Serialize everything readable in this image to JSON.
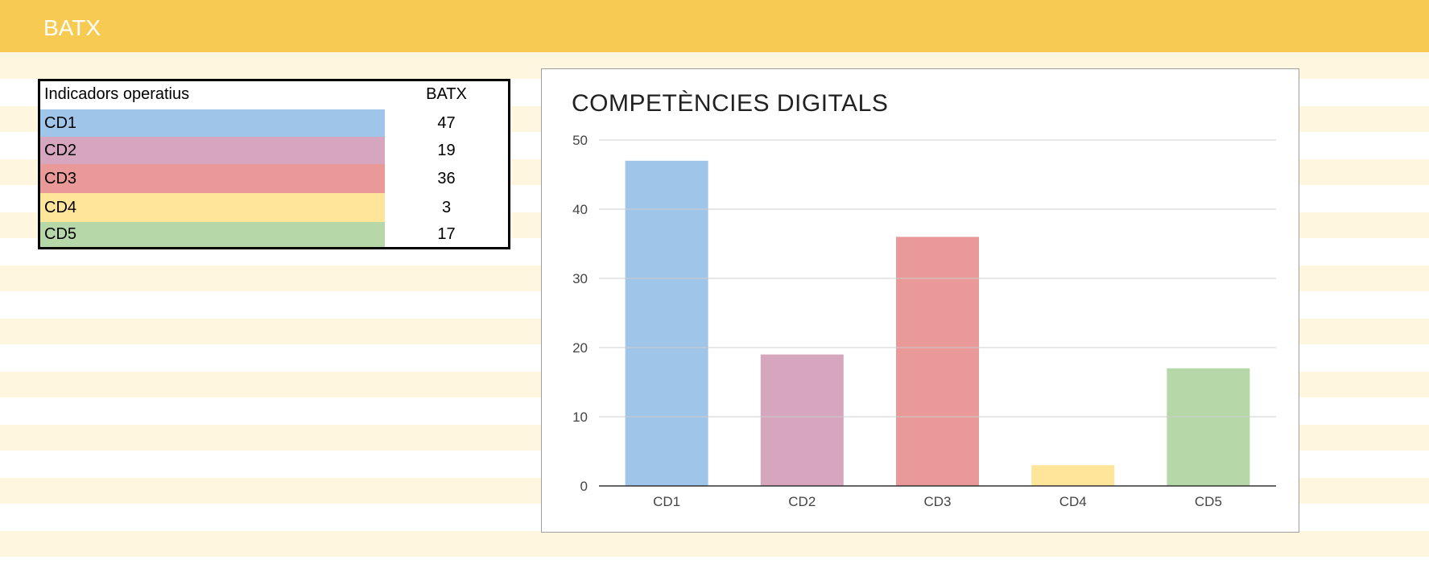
{
  "header": {
    "title": "BATX"
  },
  "table": {
    "header_label": "Indicadors operatius",
    "header_value": "BATX",
    "rows": [
      {
        "label": "CD1",
        "value": "47",
        "color": "#9fc5e8"
      },
      {
        "label": "CD2",
        "value": "19",
        "color": "#d5a6bd"
      },
      {
        "label": "CD3",
        "value": "36",
        "color": "#ea9999"
      },
      {
        "label": "CD4",
        "value": "3",
        "color": "#ffe599"
      },
      {
        "label": "CD5",
        "value": "17",
        "color": "#b6d7a8"
      }
    ]
  },
  "chart_data": {
    "type": "bar",
    "title": "COMPETÈNCIES DIGITALS",
    "categories": [
      "CD1",
      "CD2",
      "CD3",
      "CD4",
      "CD5"
    ],
    "values": [
      47,
      19,
      36,
      3,
      17
    ],
    "colors": [
      "#9fc5e8",
      "#d5a6bd",
      "#ea9999",
      "#ffe599",
      "#b6d7a8"
    ],
    "ylim": [
      0,
      50
    ],
    "yticks": [
      0,
      10,
      20,
      30,
      40,
      50
    ],
    "xlabel": "",
    "ylabel": "",
    "grid": true,
    "legend": "none"
  }
}
